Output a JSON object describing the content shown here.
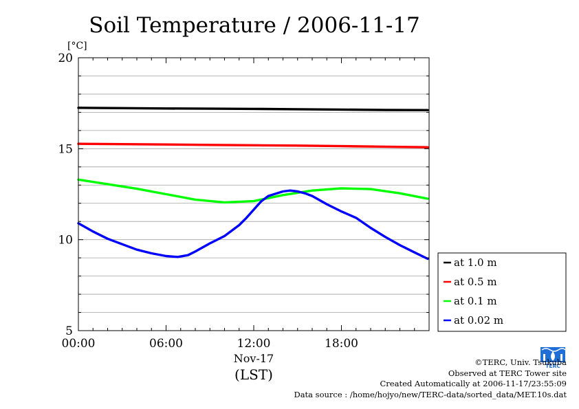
{
  "title": "Soil Temperature / 2006-11-17",
  "unit_label": "[°C]",
  "date_label": "Nov-17",
  "time_zone_label": "(LST)",
  "credits": {
    "copyright": "©TERC, Univ. Tsukuba",
    "observed": "Observed at TERC Tower site",
    "created": "Created Automatically at 2006-11-17/23:55:09",
    "source": "Data source : /home/hojyo/new/TERC-data/sorted_data/MET.10s.dat"
  },
  "logo_text": "TERC",
  "colors": {
    "at_1_0m": "#000000",
    "at_0_5m": "#ff0000",
    "at_0_1m": "#00ff00",
    "at_0_02m": "#0000ff",
    "grid": "#a0a0a0",
    "logo": "#1f6fd6"
  },
  "chart_data": {
    "type": "line",
    "title": "Soil Temperature / 2006-11-17",
    "xlabel": "(LST)",
    "ylabel": "[°C]",
    "xlim": [
      0,
      24
    ],
    "ylim": [
      5,
      20
    ],
    "x_ticks": [
      {
        "value": 0,
        "label": "00:00"
      },
      {
        "value": 6,
        "label": "06:00"
      },
      {
        "value": 12,
        "label": "12:00"
      },
      {
        "value": 18,
        "label": "18:00"
      }
    ],
    "y_ticks": [
      5,
      10,
      15,
      20
    ],
    "y_minor_step": 1,
    "grid": true,
    "legend_position": "right-bottom",
    "series": [
      {
        "name": "at 1.0 m",
        "color": "#000000",
        "x": [
          0,
          3,
          6,
          9,
          12,
          15,
          18,
          21,
          23.9
        ],
        "y": [
          17.25,
          17.23,
          17.21,
          17.2,
          17.19,
          17.17,
          17.15,
          17.13,
          17.12
        ]
      },
      {
        "name": "at 0.5 m",
        "color": "#ff0000",
        "x": [
          0,
          3,
          6,
          9,
          12,
          15,
          18,
          21,
          23.9
        ],
        "y": [
          15.27,
          15.25,
          15.23,
          15.21,
          15.19,
          15.17,
          15.14,
          15.11,
          15.08
        ]
      },
      {
        "name": "at 0.1 m",
        "color": "#00ff00",
        "x": [
          0,
          2,
          4,
          6,
          8,
          10,
          12,
          14,
          16,
          18,
          20,
          22,
          23.9
        ],
        "y": [
          13.3,
          13.05,
          12.8,
          12.5,
          12.2,
          12.05,
          12.12,
          12.45,
          12.7,
          12.82,
          12.78,
          12.55,
          12.25
        ]
      },
      {
        "name": "at 0.02 m",
        "color": "#0000ff",
        "x": [
          0,
          1,
          2,
          3,
          4,
          5,
          6,
          6.8,
          7.5,
          8,
          9,
          10,
          11,
          11.5,
          12,
          12.5,
          13,
          14,
          14.5,
          15,
          15.5,
          16,
          17,
          18,
          19,
          20,
          21,
          22,
          23,
          23.9
        ],
        "y": [
          10.9,
          10.45,
          10.05,
          9.75,
          9.45,
          9.25,
          9.1,
          9.05,
          9.15,
          9.35,
          9.8,
          10.2,
          10.8,
          11.2,
          11.65,
          12.1,
          12.4,
          12.65,
          12.7,
          12.65,
          12.55,
          12.4,
          11.95,
          11.55,
          11.2,
          10.65,
          10.15,
          9.7,
          9.3,
          8.95
        ]
      }
    ]
  }
}
